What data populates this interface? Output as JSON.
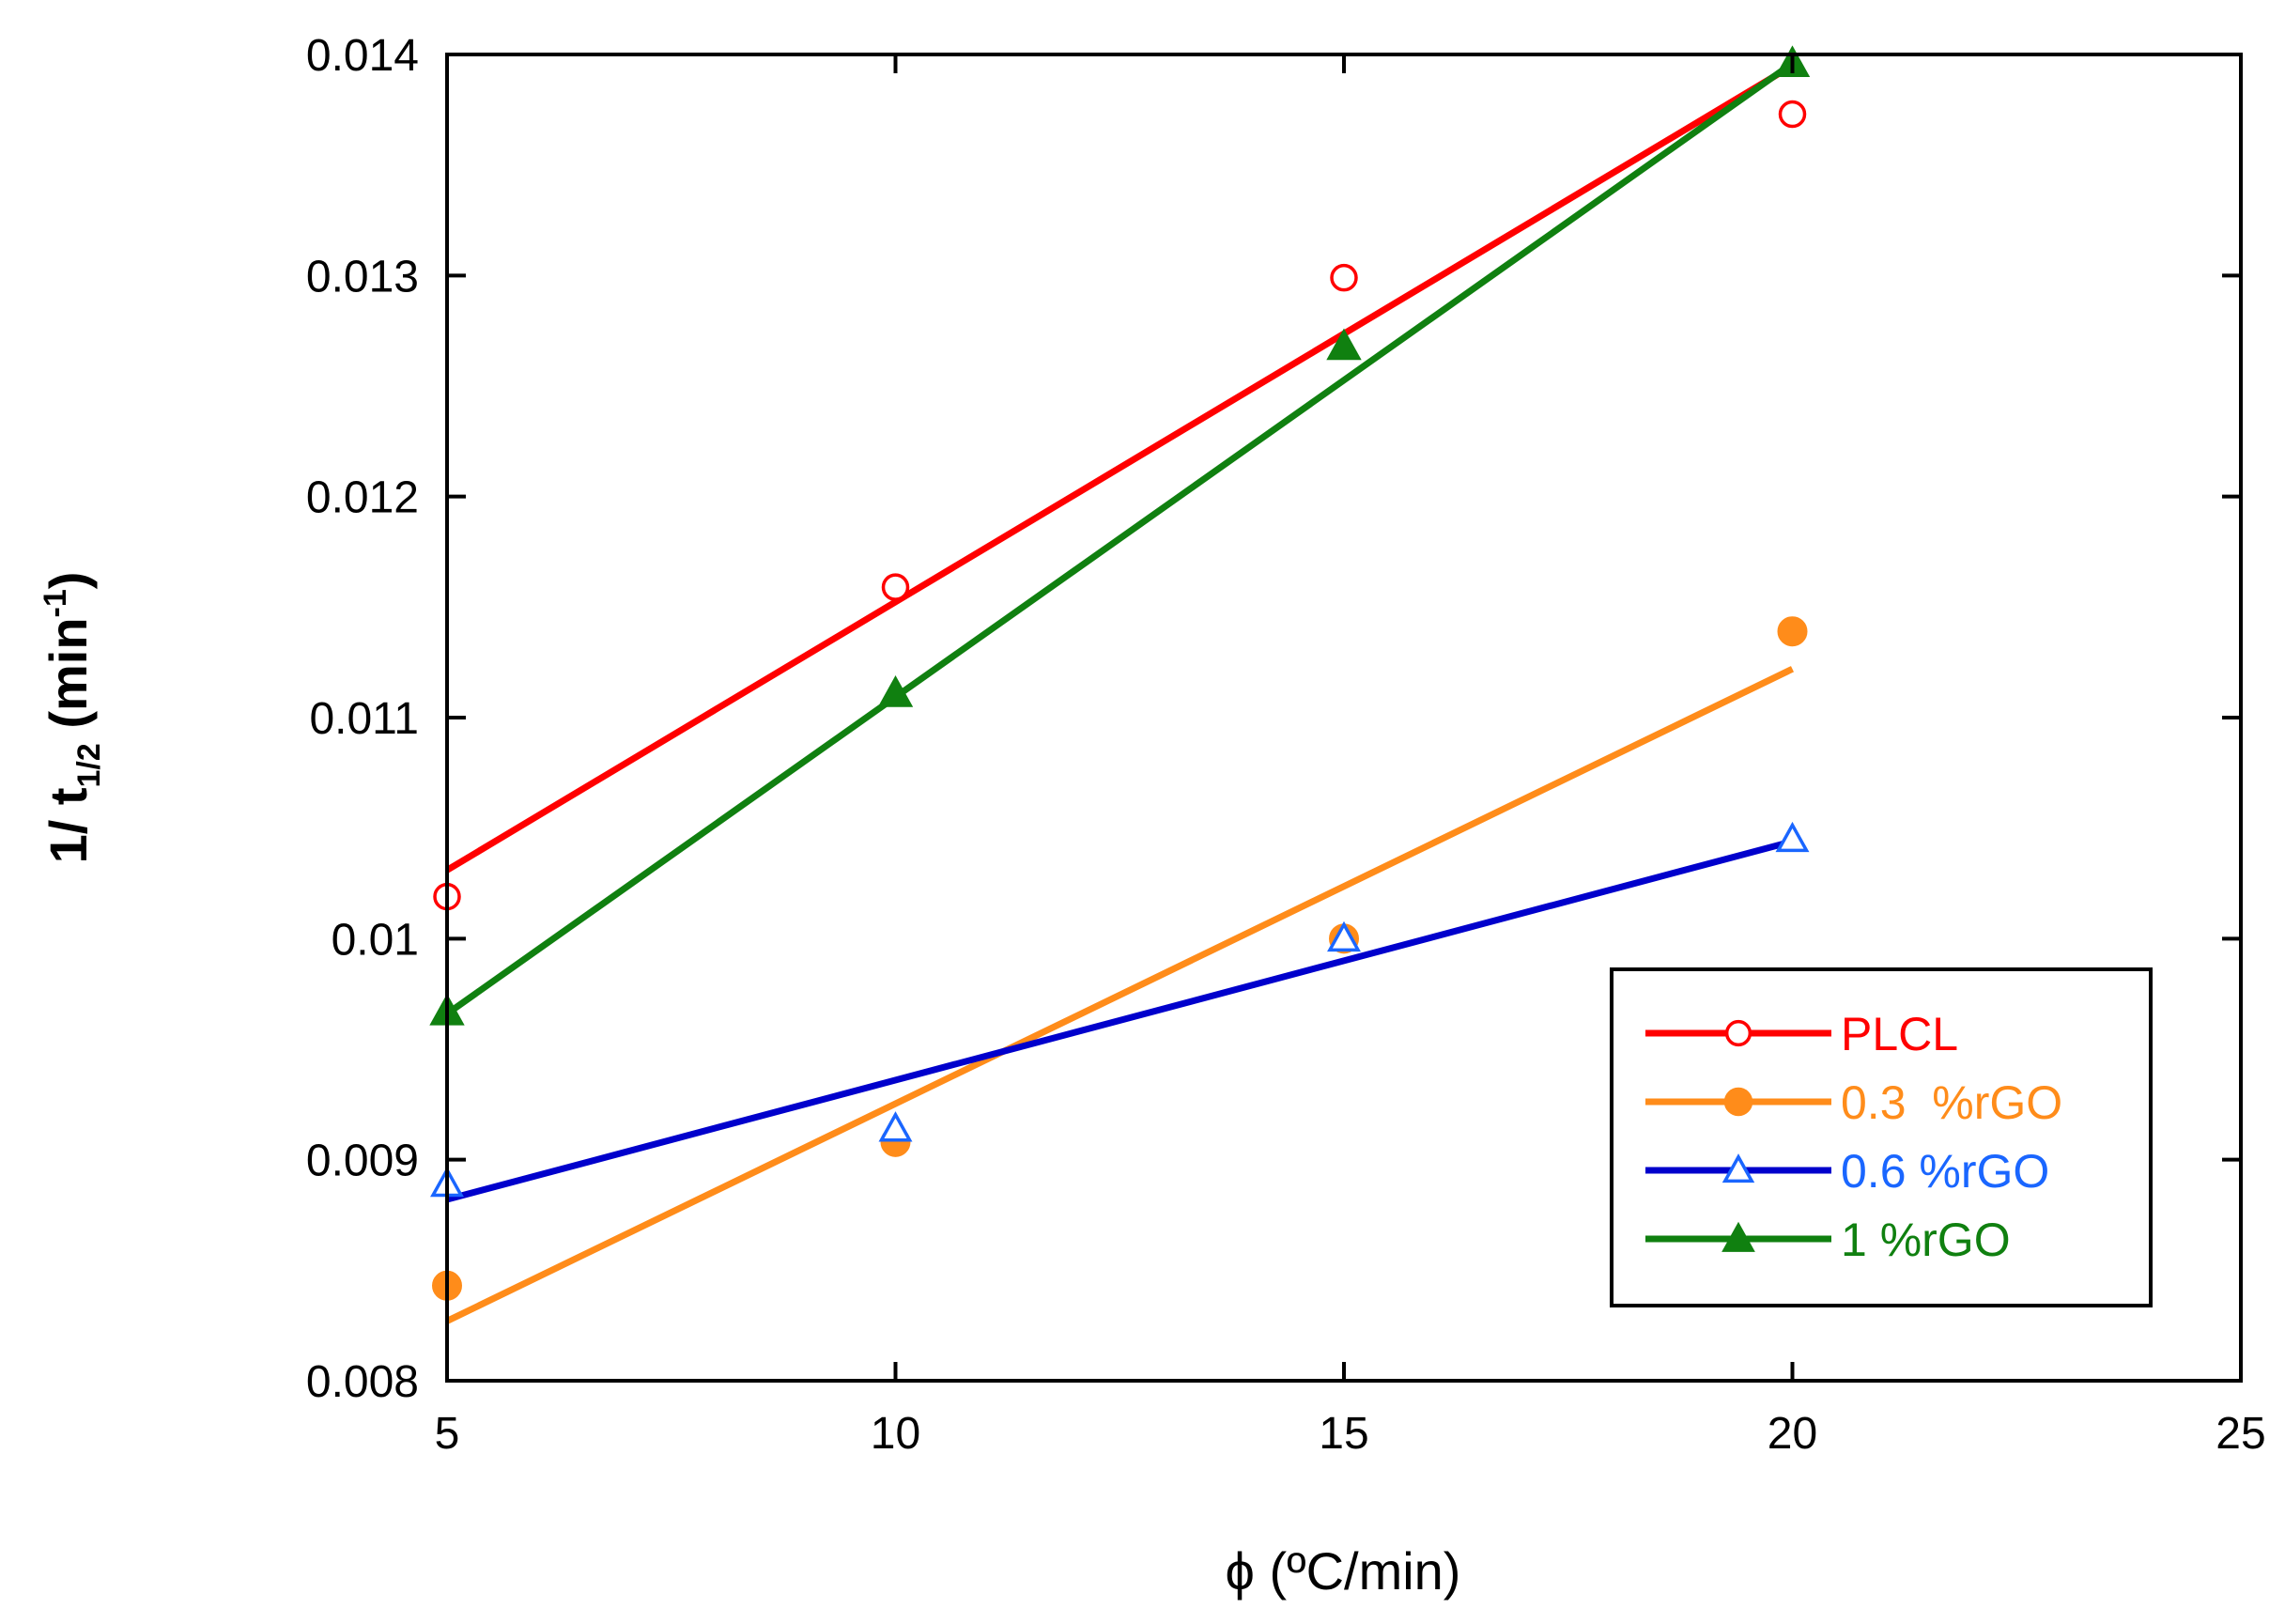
{
  "chart_data": {
    "type": "scatter",
    "title": "",
    "xlabel": "ϕ (ºC/min)",
    "ylabel": {
      "prefix": "1/ t",
      "subscript": "1/2",
      "unit_open": "(min",
      "superscript": "-1",
      "unit_close": ")"
    },
    "xlim": [
      5,
      25
    ],
    "ylim": [
      0.008,
      0.014
    ],
    "x_ticks": [
      "5",
      "10",
      "15",
      "20",
      "25"
    ],
    "x_tick_values": [
      5,
      10,
      15,
      20,
      25
    ],
    "y_ticks": [
      "0.008",
      "0.009",
      "0.01",
      "0.011",
      "0.012",
      "0.013",
      "0.014"
    ],
    "y_tick_values": [
      0.008,
      0.009,
      0.01,
      0.011,
      0.012,
      0.013,
      0.014
    ],
    "grid": false,
    "legend_position": "bottom-right",
    "series": [
      {
        "name": "PLCL",
        "color": "#ff0000",
        "marker": "circle-open",
        "x": [
          5,
          10,
          15,
          20
        ],
        "y": [
          0.01019,
          0.01159,
          0.01299,
          0.01373
        ],
        "fit": {
          "x": [
            5,
            20
          ],
          "y": [
            0.01031,
            0.01395
          ]
        }
      },
      {
        "name": "0.3  %rGO",
        "color": "#ff8c1a",
        "marker": "circle-filled",
        "x": [
          5,
          10,
          15,
          20
        ],
        "y": [
          0.00843,
          0.00908,
          0.01,
          0.01139
        ],
        "fit": {
          "x": [
            5,
            20
          ],
          "y": [
            0.00827,
            0.01122
          ]
        }
      },
      {
        "name": "0.6 %rGO",
        "color": "#0000cc",
        "marker_color": "#1a66ff",
        "marker": "triangle-open",
        "x": [
          5,
          10,
          15,
          20
        ],
        "y": [
          0.00889,
          0.00914,
          0.01,
          0.01045
        ],
        "fit": {
          "x": [
            5,
            20
          ],
          "y": [
            0.00882,
            0.01044
          ]
        }
      },
      {
        "name": "1 %rGO",
        "color": "#108010",
        "marker": "triangle-filled",
        "x": [
          5,
          10,
          15,
          20
        ],
        "y": [
          0.00967,
          0.01111,
          0.01268,
          0.01396
        ],
        "fit": {
          "x": [
            5,
            20
          ],
          "y": [
            0.00966,
            0.01396
          ]
        }
      }
    ]
  }
}
